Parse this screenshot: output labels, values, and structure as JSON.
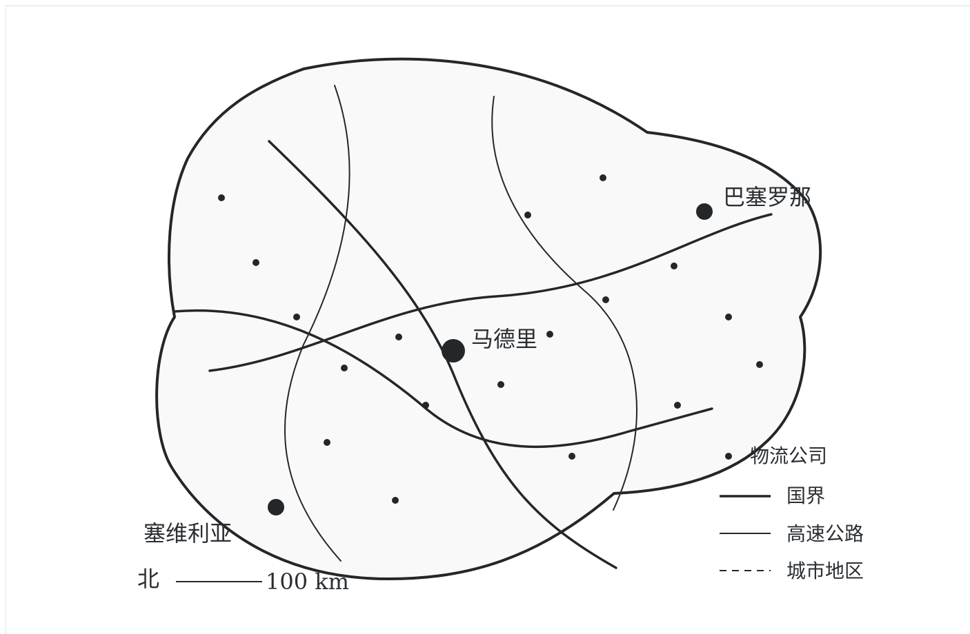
{
  "cities": [
    {
      "name": "马德里"
    },
    {
      "name": "巴塞罗那"
    },
    {
      "name": "塞维利亚"
    }
  ],
  "scale": {
    "north_label": "北",
    "distance_label": "100 km"
  },
  "legend": {
    "items": [
      {
        "label": "物流公司",
        "symbol": "dot"
      },
      {
        "label": "国界",
        "symbol": "thick-line"
      },
      {
        "label": "高速公路",
        "symbol": "thin-line"
      },
      {
        "label": "城市地区",
        "symbol": "dashed-line"
      }
    ]
  },
  "colors": {
    "ink": "#23272a",
    "land_fill": "#f9f9f9",
    "frame": "#dfe6df"
  }
}
